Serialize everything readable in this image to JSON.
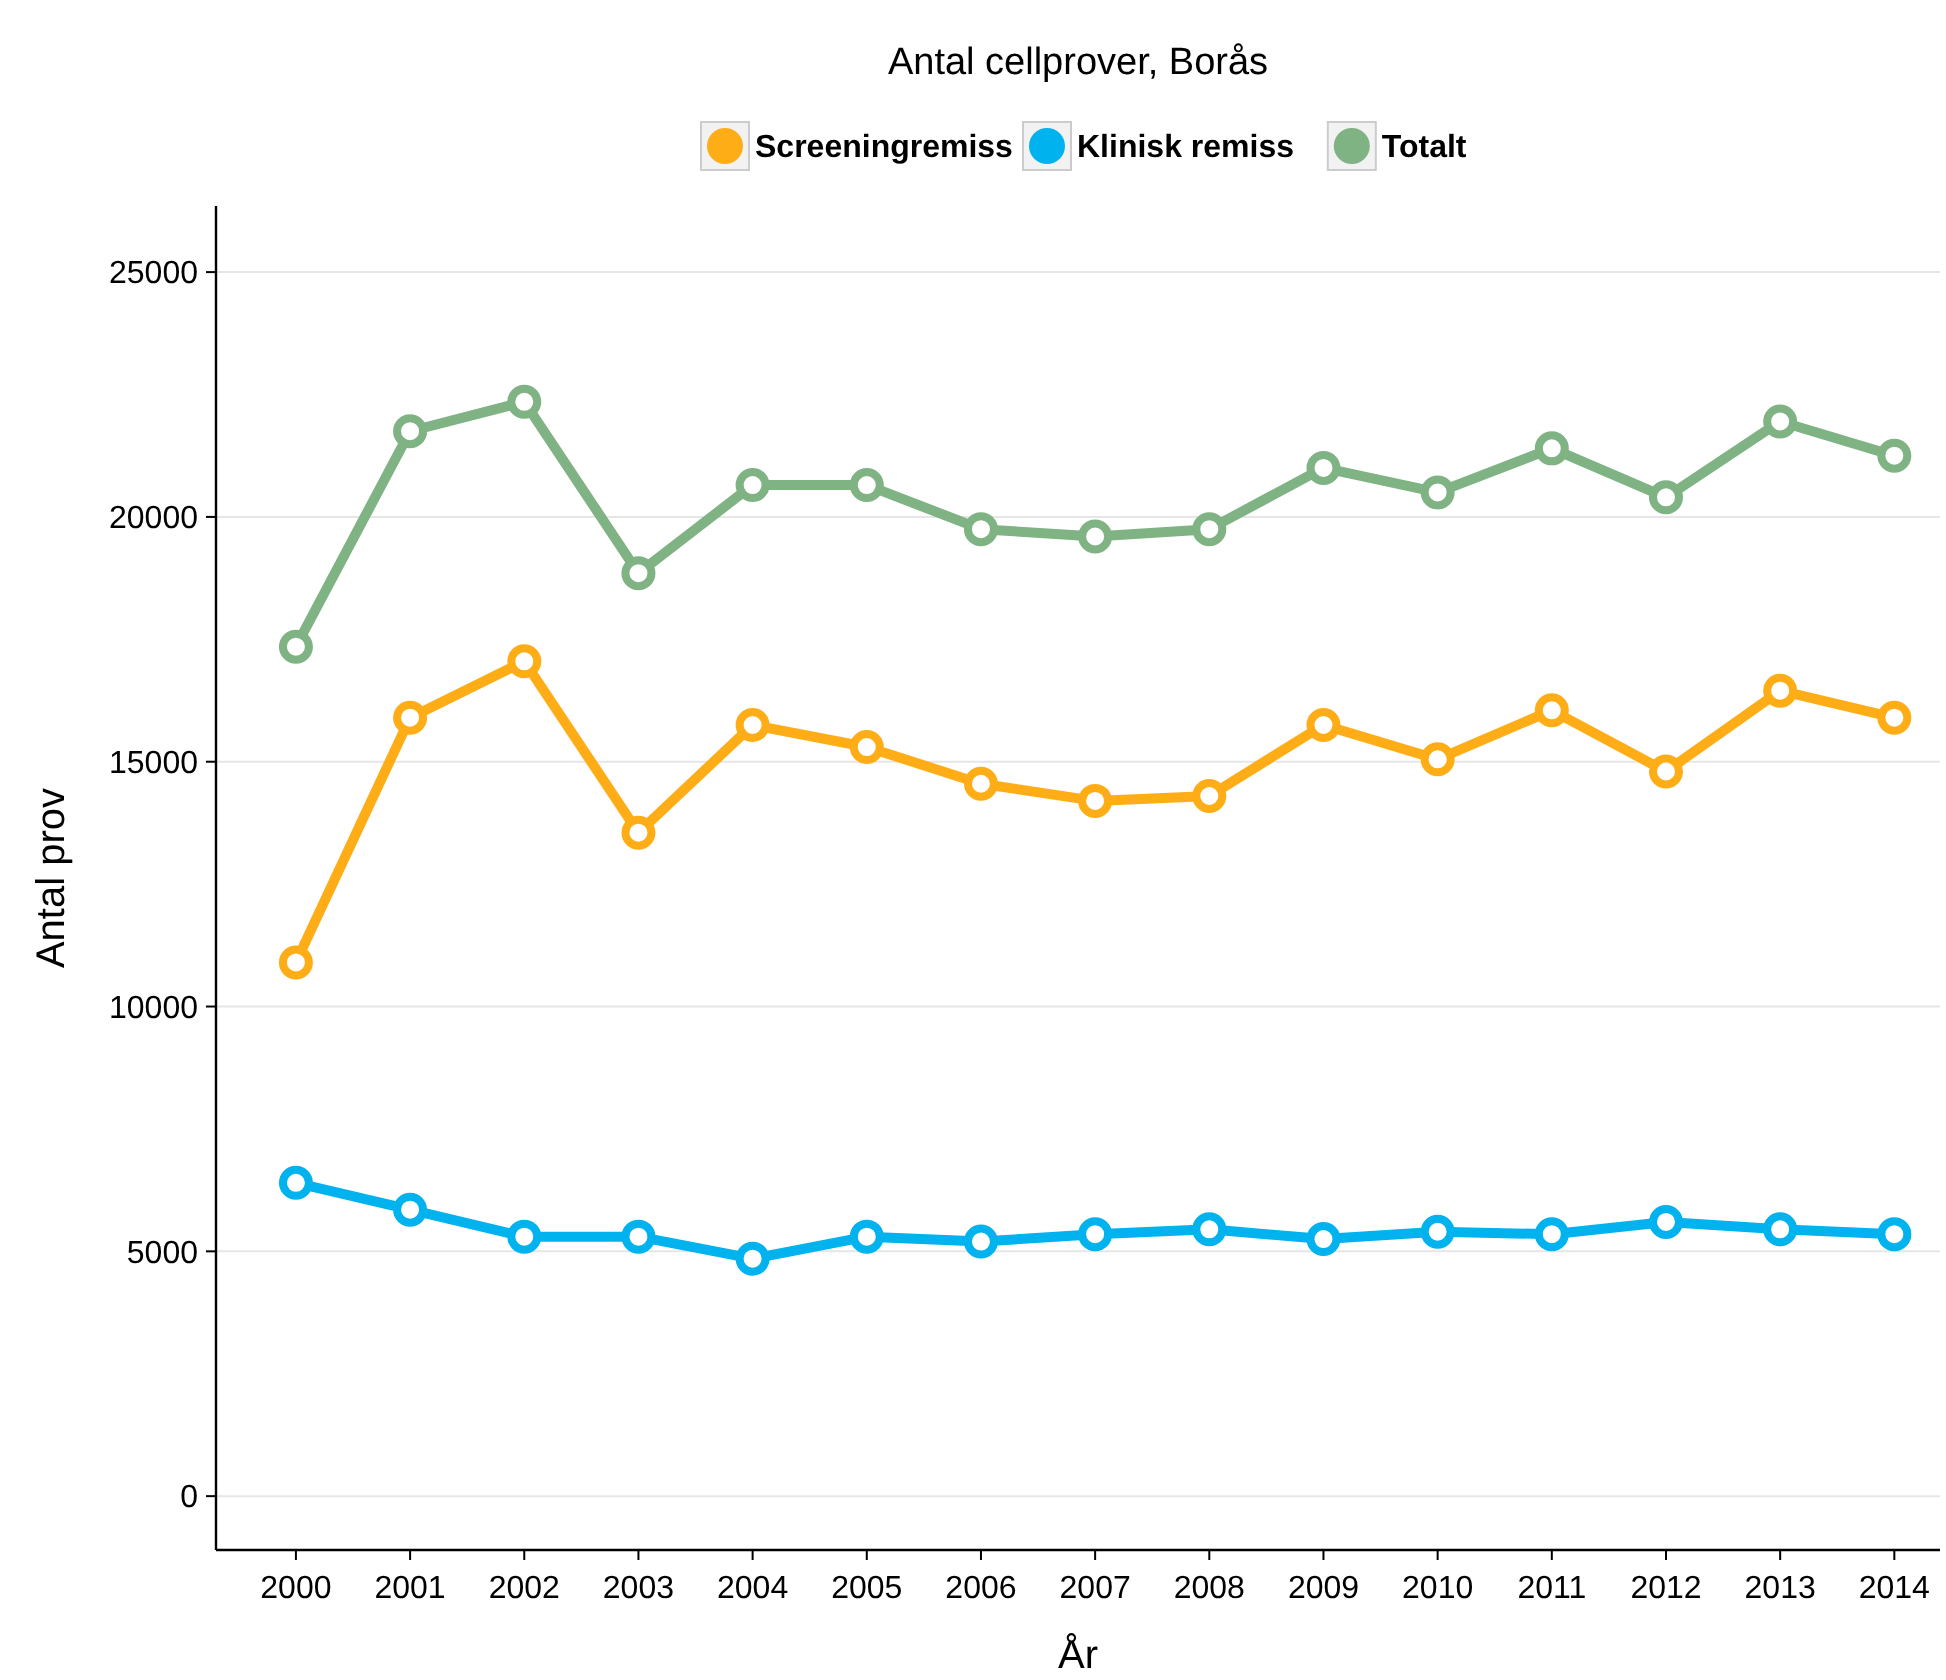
{
  "chart_data": {
    "type": "line",
    "title": "Antal cellprover, Borås",
    "xlabel": "År",
    "ylabel": "Antal prov",
    "categories": [
      "2000",
      "2001",
      "2002",
      "2003",
      "2004",
      "2005",
      "2006",
      "2007",
      "2008",
      "2009",
      "2010",
      "2011",
      "2012",
      "2013",
      "2014"
    ],
    "series": [
      {
        "name": "Screeningremiss",
        "color": "#ffad17",
        "values": [
          10900,
          15900,
          17050,
          13550,
          15750,
          15300,
          14550,
          14200,
          14300,
          15750,
          15050,
          16050,
          14800,
          16450,
          15900
        ]
      },
      {
        "name": "Klinisk remiss",
        "color": "#00b2ee",
        "values": [
          6400,
          5850,
          5300,
          5300,
          4850,
          5300,
          5200,
          5350,
          5450,
          5250,
          5400,
          5350,
          5600,
          5450,
          5350
        ]
      },
      {
        "name": "Totalt",
        "color": "#7fb383",
        "values": [
          17350,
          21750,
          22350,
          18850,
          20650,
          20650,
          19750,
          19600,
          19750,
          21000,
          20500,
          21400,
          20400,
          21950,
          21250
        ]
      }
    ],
    "ylim": [
      -1100,
      26350
    ],
    "yticks": [
      0,
      5000,
      10000,
      15000,
      20000,
      25000
    ],
    "grid": "y",
    "legend": "top",
    "marker": "circle",
    "line_style": "solid"
  }
}
